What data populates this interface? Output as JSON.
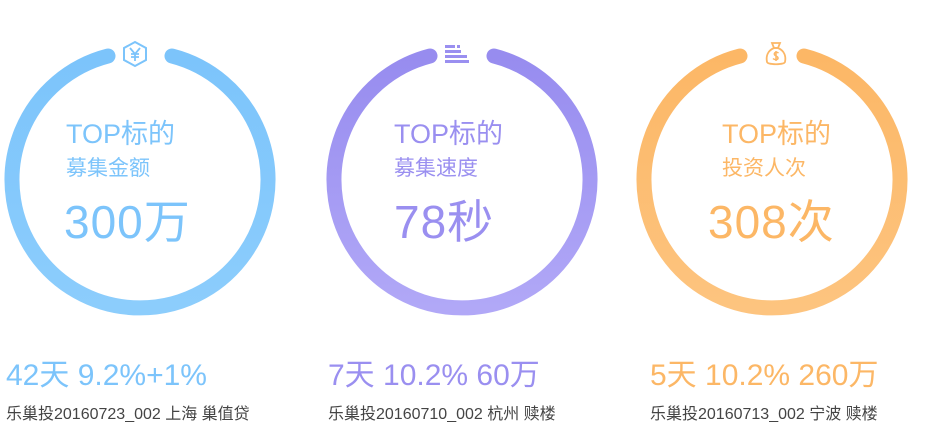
{
  "cards": [
    {
      "label_line1": "TOP标的",
      "label_line2": "募集金额",
      "value": "300万",
      "stats": "42天  9.2%+1%",
      "desc": "乐巢投20160723_002 上海 巢值贷",
      "color": "#7cc4fb",
      "icon": "yen-shield-icon"
    },
    {
      "label_line1": "TOP标的",
      "label_line2": "募集速度",
      "value": "78秒",
      "stats": "7天  10.2%  60万",
      "desc": "乐巢投20160710_002 杭州 赎楼",
      "color": "#9a8ff0",
      "icon": "speed-bars-icon"
    },
    {
      "label_line1": "TOP标的",
      "label_line2": "投资人次",
      "value": "308次",
      "stats": "5天  10.2%  260万",
      "desc": "乐巢投20160713_002 宁波 赎楼",
      "color": "#fcb766",
      "icon": "money-bag-icon"
    }
  ]
}
